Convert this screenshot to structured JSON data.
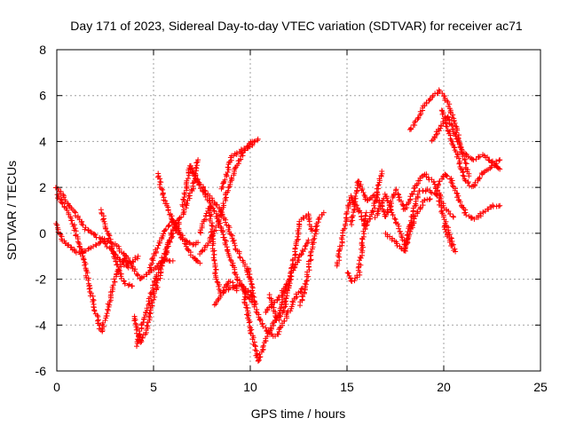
{
  "chart_data": {
    "type": "scatter",
    "title": "Day 171 of 2023, Sidereal Day-to-day VTEC variation (SDTVAR) for receiver ac71",
    "xlabel": "GPS time / hours",
    "ylabel": "SDTVAR / TECUs",
    "xlim": [
      0,
      25
    ],
    "ylim": [
      -6,
      8
    ],
    "xticks": [
      0,
      5,
      10,
      15,
      20,
      25
    ],
    "xtick_labels": [
      "0",
      "5",
      "10",
      "15",
      "20",
      "25"
    ],
    "yticks": [
      -6,
      -4,
      -2,
      0,
      2,
      4,
      6,
      8
    ],
    "ytick_labels": [
      "-6",
      "-4",
      "-2",
      "0",
      "2",
      "4",
      "6",
      "8"
    ],
    "grid": true,
    "marker": "+",
    "color": "#ff0000",
    "series": [
      {
        "name": "s1",
        "x": [
          0.0,
          0.5,
          1.0,
          1.5,
          2.0,
          2.5,
          3.0,
          3.5,
          4.0,
          4.3,
          4.8,
          5.5,
          6.0
        ],
        "y": [
          2.0,
          1.4,
          0.8,
          0.2,
          -0.1,
          -0.3,
          -0.5,
          -0.9,
          -1.6,
          -2.0,
          -1.7,
          -1.2,
          -1.2
        ]
      },
      {
        "name": "s2",
        "x": [
          0.0,
          0.4,
          0.9,
          1.4,
          1.7,
          2.0,
          2.3,
          2.6,
          3.0,
          3.5,
          3.7
        ],
        "y": [
          1.7,
          1.2,
          0.3,
          -1.2,
          -2.4,
          -3.4,
          -4.3,
          -3.4,
          -2.0,
          -1.0,
          -1.5
        ]
      },
      {
        "name": "s3",
        "x": [
          0.0,
          0.3,
          0.7,
          1.2,
          1.8,
          2.4,
          3.0,
          3.6,
          4.0,
          4.2
        ],
        "y": [
          0.4,
          -0.3,
          -0.6,
          -0.9,
          -0.6,
          -0.3,
          -0.9,
          -1.4,
          -1.2,
          -1.0
        ]
      },
      {
        "name": "s4",
        "x": [
          2.3,
          2.6,
          3.0,
          3.5,
          3.9
        ],
        "y": [
          1.0,
          0.1,
          -1.1,
          -2.2,
          -2.3
        ]
      },
      {
        "name": "s5",
        "x": [
          4.0,
          4.3,
          4.6,
          5.0,
          5.5,
          6.0,
          6.3
        ],
        "y": [
          -3.6,
          -4.8,
          -4.3,
          -2.8,
          -1.3,
          0.2,
          0.6
        ]
      },
      {
        "name": "s6",
        "x": [
          4.1,
          4.5,
          5.0,
          5.5,
          6.0,
          6.5,
          7.0,
          7.3
        ],
        "y": [
          -4.9,
          -3.8,
          -2.3,
          -1.0,
          0.0,
          0.8,
          1.9,
          3.2
        ]
      },
      {
        "name": "s7",
        "x": [
          4.8,
          5.0,
          5.5,
          6.0,
          6.6,
          7.0,
          7.3
        ],
        "y": [
          -1.6,
          -1.0,
          0.0,
          0.6,
          -0.3,
          -0.5,
          -0.4
        ]
      },
      {
        "name": "s8",
        "x": [
          5.2,
          5.6,
          6.0,
          6.5,
          7.0,
          7.4
        ],
        "y": [
          2.6,
          1.4,
          0.5,
          -0.3,
          -1.0,
          -1.3
        ]
      },
      {
        "name": "s9",
        "x": [
          6.5,
          6.9,
          7.3,
          7.8,
          8.3,
          8.8,
          9.3,
          9.8,
          10.0
        ],
        "y": [
          1.2,
          2.9,
          2.3,
          1.7,
          1.2,
          0.4,
          -0.7,
          -1.5,
          -2.0
        ]
      },
      {
        "name": "s10",
        "x": [
          6.9,
          7.3,
          7.8,
          8.3,
          8.8,
          9.3,
          9.8,
          10.1
        ],
        "y": [
          2.9,
          2.2,
          1.5,
          0.7,
          -0.6,
          -1.9,
          -2.7,
          -3.0
        ]
      },
      {
        "name": "s11",
        "x": [
          7.4,
          7.9,
          8.2,
          8.5,
          9.0,
          9.5,
          10.0,
          10.2
        ],
        "y": [
          0.0,
          1.2,
          -1.8,
          -2.6,
          -2.4,
          -2.2,
          -2.6,
          -3.0
        ]
      },
      {
        "name": "s12",
        "x": [
          7.4,
          7.8,
          8.3,
          8.8,
          9.3,
          9.7,
          10.1
        ],
        "y": [
          -0.9,
          -0.5,
          0.3,
          1.8,
          3.0,
          3.6,
          4.0
        ]
      },
      {
        "name": "s13",
        "x": [
          8.5,
          8.8,
          9.0,
          9.5,
          10.0,
          10.4
        ],
        "y": [
          1.9,
          2.6,
          3.3,
          3.6,
          3.8,
          4.1
        ]
      },
      {
        "name": "s14",
        "x": [
          8.2,
          8.5,
          8.8,
          9.0,
          9.3
        ],
        "y": [
          -3.1,
          -2.6,
          -2.2,
          -2.1,
          -2.5
        ]
      },
      {
        "name": "s15",
        "x": [
          9.6,
          10.0,
          10.4,
          10.9,
          11.4,
          11.8,
          12.0
        ],
        "y": [
          -2.3,
          -4.1,
          -5.6,
          -4.4,
          -3.7,
          -2.5,
          -2.3
        ]
      },
      {
        "name": "s16",
        "x": [
          9.9,
          10.3,
          10.8,
          11.3,
          11.8,
          12.3,
          12.7
        ],
        "y": [
          -1.5,
          -3.4,
          -4.2,
          -4.5,
          -3.8,
          -2.8,
          -2.4
        ]
      },
      {
        "name": "s17",
        "x": [
          11.0,
          11.4,
          11.8,
          12.2,
          12.6,
          13.0,
          13.2
        ],
        "y": [
          -2.7,
          -3.8,
          -3.2,
          -1.4,
          0.6,
          0.8,
          0.1
        ]
      },
      {
        "name": "s18",
        "x": [
          10.8,
          11.3,
          11.8,
          12.3,
          12.7,
          13.0
        ],
        "y": [
          -3.4,
          -3.0,
          -2.4,
          -1.4,
          -0.8,
          -0.3
        ]
      },
      {
        "name": "s19",
        "x": [
          12.6,
          12.9,
          13.2,
          13.5,
          13.8
        ],
        "y": [
          -3.1,
          -2.1,
          -0.6,
          0.6,
          0.9
        ]
      },
      {
        "name": "s20",
        "x": [
          14.5,
          14.8,
          15.2,
          15.6,
          16.0,
          16.4,
          16.8
        ],
        "y": [
          -1.4,
          0.0,
          1.6,
          1.0,
          0.3,
          1.1,
          2.7
        ]
      },
      {
        "name": "s21",
        "x": [
          15.0,
          15.3,
          15.6,
          16.0
        ],
        "y": [
          -1.7,
          -2.1,
          -1.8,
          0.9
        ]
      },
      {
        "name": "s22",
        "x": [
          15.2,
          15.6,
          16.0,
          16.5,
          17.0,
          17.5,
          18.0,
          18.5,
          19.0,
          19.5,
          20.0,
          20.5
        ],
        "y": [
          0.4,
          2.3,
          1.4,
          1.7,
          0.7,
          1.9,
          1.0,
          2.0,
          2.6,
          2.2,
          1.2,
          0.7
        ]
      },
      {
        "name": "s23",
        "x": [
          16.5,
          17.0,
          17.5,
          18.0,
          18.3,
          18.7,
          19.2,
          19.7,
          20.0,
          20.5
        ],
        "y": [
          0.7,
          1.7,
          0.6,
          -0.6,
          0.5,
          1.8,
          1.9,
          1.6,
          0.7,
          -0.5
        ]
      },
      {
        "name": "s24",
        "x": [
          17.0,
          17.5,
          18.0,
          18.5,
          19.0,
          19.3
        ],
        "y": [
          0.0,
          -0.4,
          -0.8,
          0.7,
          1.4,
          1.5
        ]
      },
      {
        "name": "s25",
        "x": [
          18.2,
          18.7,
          19.0,
          19.5,
          19.8,
          20.2,
          20.6,
          21.0,
          21.3
        ],
        "y": [
          4.5,
          5.0,
          5.6,
          6.0,
          6.2,
          5.7,
          4.7,
          3.4,
          2.5
        ]
      },
      {
        "name": "s26",
        "x": [
          19.4,
          19.8,
          20.2,
          20.6,
          21.0,
          21.5,
          22.0,
          22.5,
          22.9
        ],
        "y": [
          4.0,
          4.6,
          5.1,
          4.3,
          3.5,
          3.2,
          3.4,
          3.1,
          2.8
        ]
      },
      {
        "name": "s27",
        "x": [
          19.9,
          20.3,
          20.7,
          21.1,
          21.5,
          22.0,
          22.5,
          22.9
        ],
        "y": [
          5.4,
          4.3,
          3.4,
          2.3,
          2.0,
          2.6,
          2.9,
          3.2
        ]
      },
      {
        "name": "s28",
        "x": [
          19.7,
          20.0,
          20.4,
          20.8,
          21.2,
          21.6,
          22.0,
          22.5,
          22.9
        ],
        "y": [
          2.0,
          2.6,
          2.3,
          1.4,
          0.8,
          0.6,
          0.9,
          1.2,
          1.2
        ]
      },
      {
        "name": "s29",
        "x": [
          20.0,
          20.3,
          20.6
        ],
        "y": [
          0.3,
          -0.3,
          -0.8
        ]
      }
    ]
  }
}
